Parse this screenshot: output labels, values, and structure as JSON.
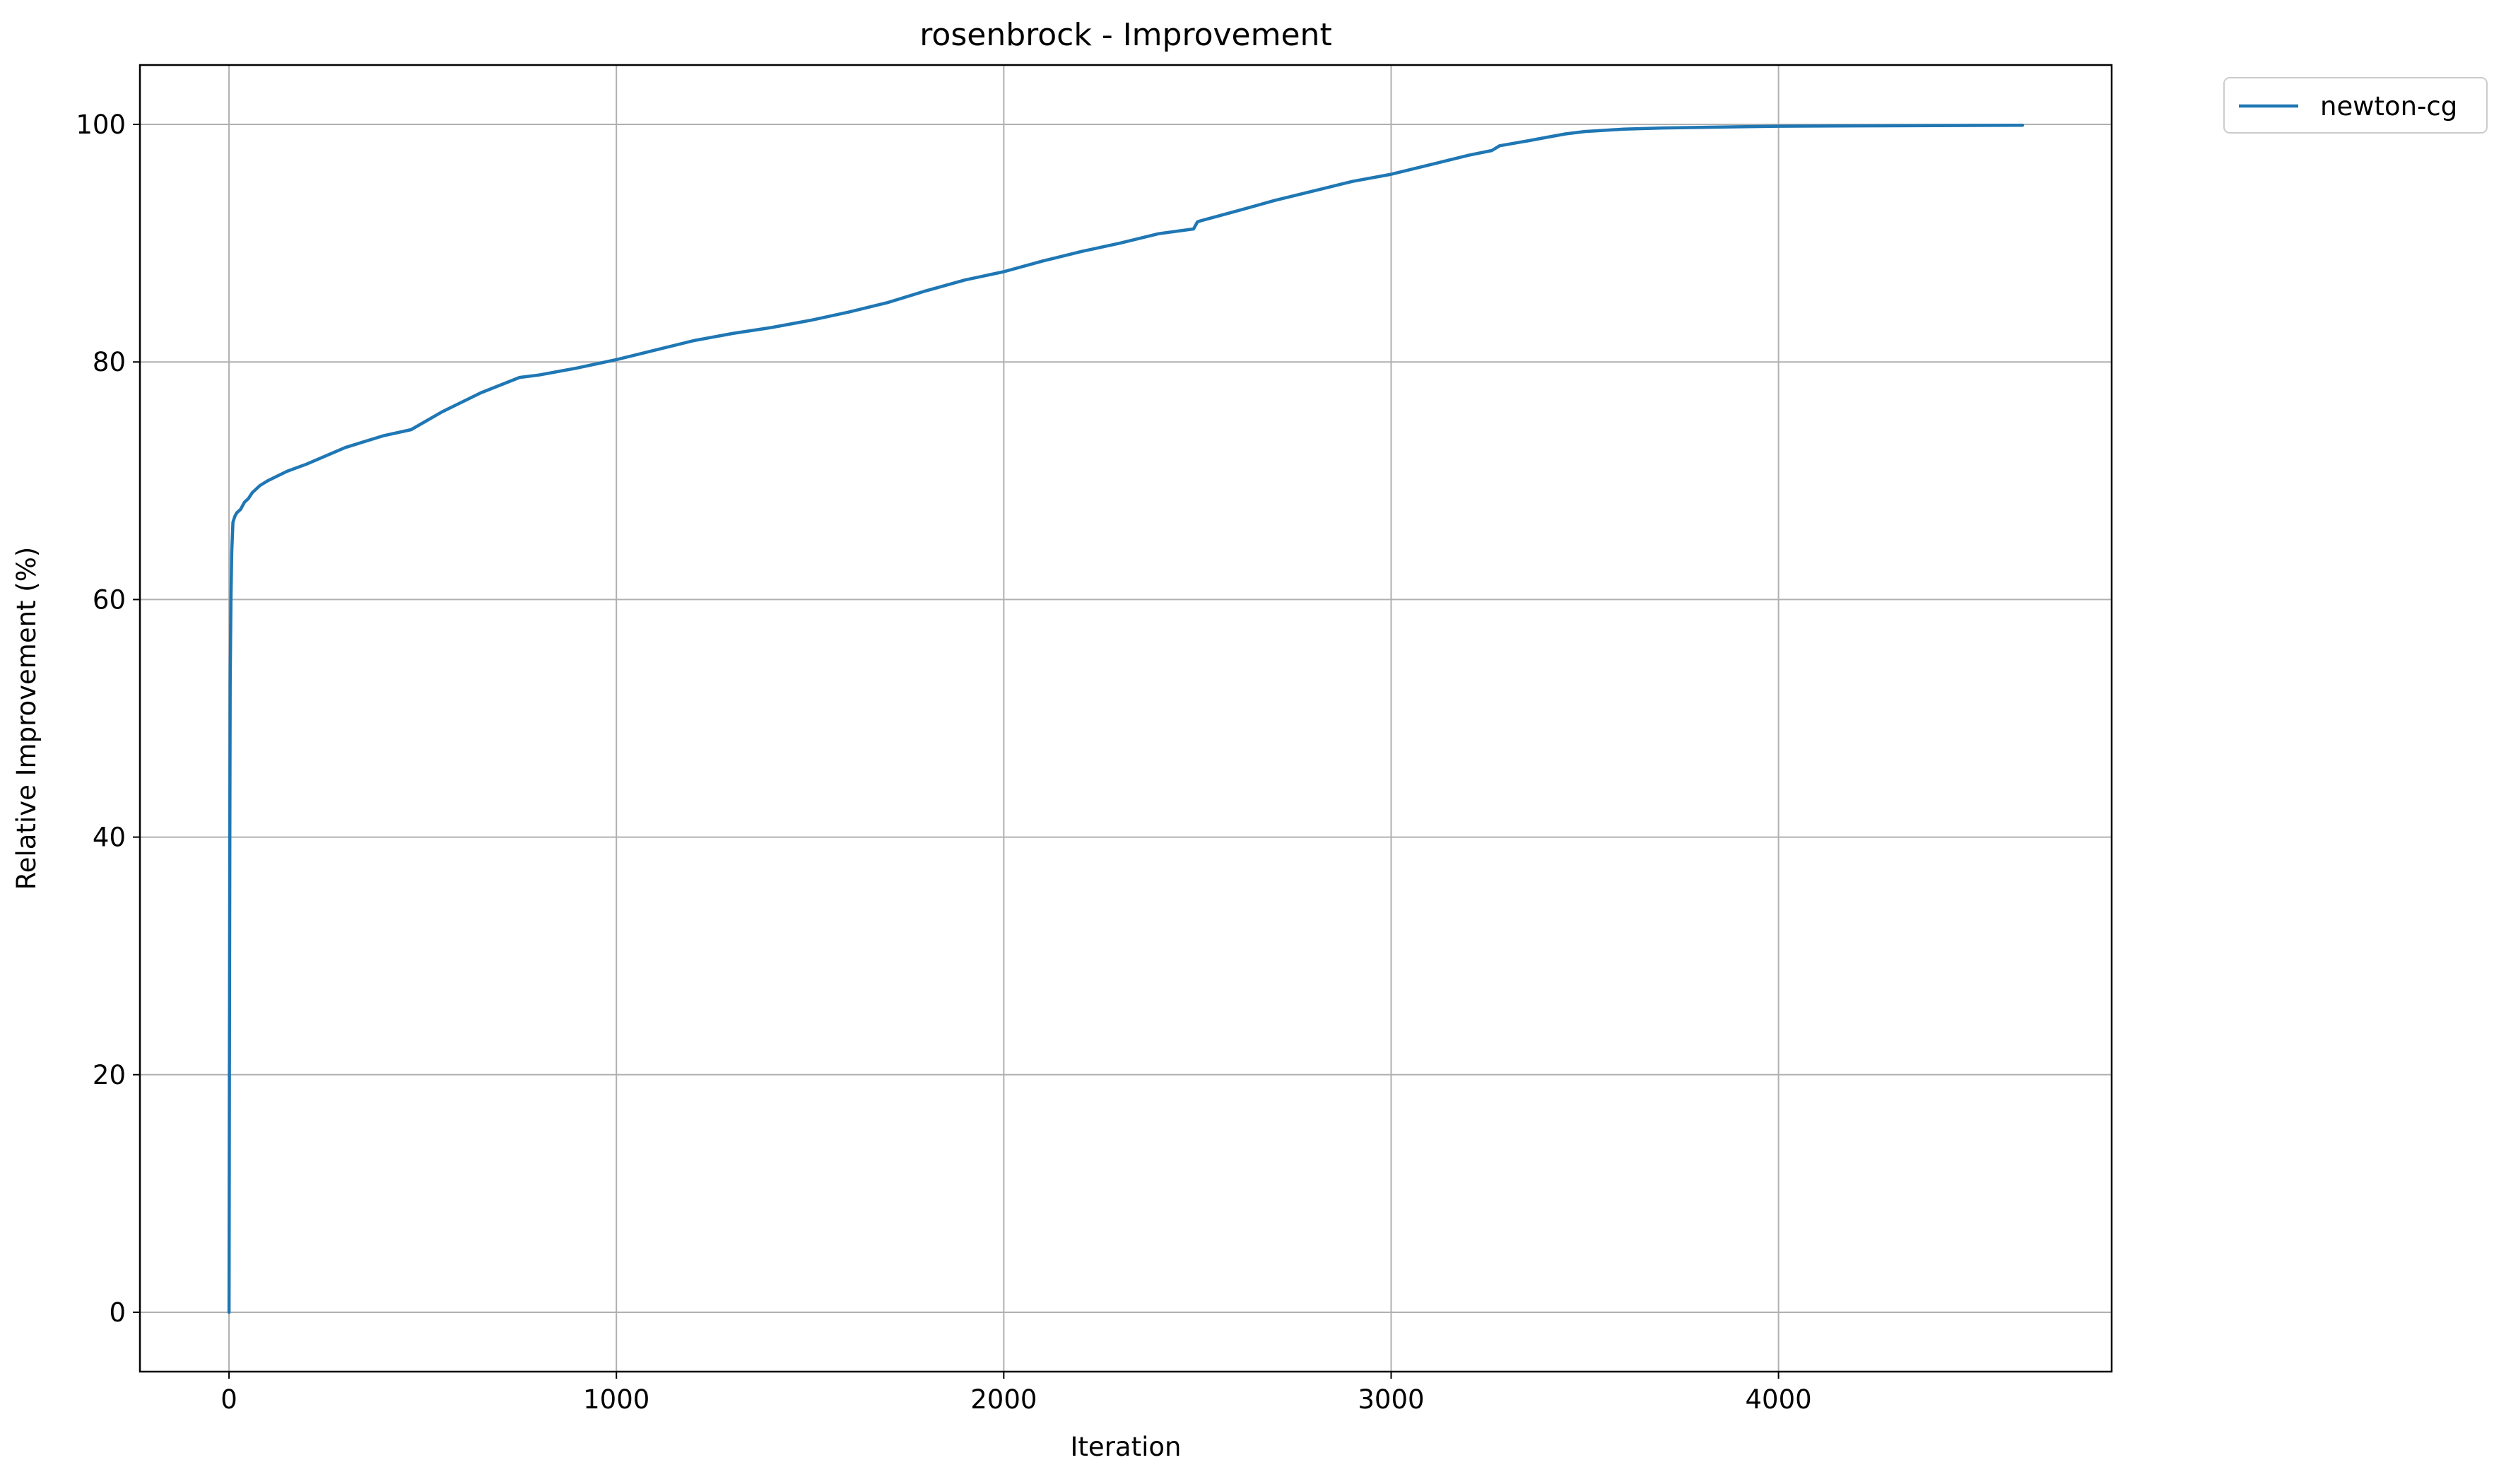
{
  "chart_data": {
    "type": "line",
    "title": "rosenbrock - Improvement",
    "xlabel": "Iteration",
    "ylabel": "Relative Improvement (%)",
    "xlim": [
      -230,
      4860
    ],
    "ylim": [
      -5,
      105
    ],
    "xticks": [
      0,
      1000,
      2000,
      3000,
      4000
    ],
    "yticks": [
      0,
      20,
      40,
      60,
      80,
      100
    ],
    "grid": true,
    "legend_position": "outside-top-right",
    "series": [
      {
        "name": "newton-cg",
        "color": "#1f77b4",
        "x": [
          0,
          1,
          2,
          3,
          5,
          7,
          10,
          15,
          20,
          30,
          40,
          50,
          60,
          80,
          100,
          150,
          200,
          300,
          400,
          470,
          550,
          650,
          750,
          800,
          900,
          1000,
          1100,
          1200,
          1300,
          1400,
          1500,
          1600,
          1700,
          1800,
          1900,
          2000,
          2100,
          2200,
          2300,
          2400,
          2490,
          2500,
          2510,
          2600,
          2700,
          2800,
          2900,
          3000,
          3100,
          3200,
          3260,
          3280,
          3350,
          3400,
          3450,
          3500,
          3600,
          3700,
          3800,
          3900,
          4000,
          4200,
          4400,
          4630
        ],
        "y": [
          0,
          20,
          40,
          53,
          60,
          64,
          66.5,
          67,
          67.3,
          67.6,
          68.2,
          68.5,
          69,
          69.6,
          70,
          70.8,
          71.4,
          72.8,
          73.8,
          74.3,
          75.8,
          77.4,
          78.7,
          78.9,
          79.5,
          80.2,
          81,
          81.8,
          82.4,
          82.9,
          83.5,
          84.2,
          85,
          86,
          86.9,
          87.6,
          88.5,
          89.3,
          90,
          90.8,
          91.2,
          91.8,
          91.9,
          92.7,
          93.6,
          94.4,
          95.2,
          95.8,
          96.6,
          97.4,
          97.8,
          98.2,
          98.6,
          98.9,
          99.2,
          99.4,
          99.6,
          99.7,
          99.75,
          99.8,
          99.85,
          99.88,
          99.9,
          99.93
        ]
      }
    ]
  }
}
